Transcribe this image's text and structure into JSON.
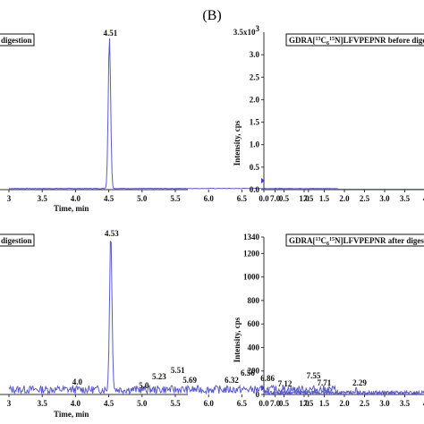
{
  "panel_letter": "(B)",
  "chart_data": [
    {
      "id": "top-left",
      "type": "line",
      "legend": "digestion",
      "xlabel": "Time, min",
      "ylabel": "",
      "x_ticks": [
        "3",
        "3.5",
        "4.0",
        "4.5",
        "5.0",
        "5.5",
        "6.0",
        "6.5",
        "7.0",
        "7.5"
      ],
      "xlim": [
        3.0,
        8.0
      ],
      "peak": {
        "x": 4.51,
        "label": "4.51"
      },
      "color": "#5a5ad0"
    },
    {
      "id": "bottom-left",
      "type": "line",
      "legend": "digestion",
      "xlabel": "Time, min",
      "ylabel": "",
      "x_ticks": [
        "3",
        "3.5",
        "4.0",
        "4.5",
        "5.0",
        "5.5",
        "6.0",
        "6.5",
        "7.0",
        "7.5"
      ],
      "xlim": [
        3.0,
        8.0
      ],
      "peak": {
        "x": 4.53,
        "label": "4.53"
      },
      "noise_labels": [
        {
          "x": 4.0,
          "label": "4.0"
        },
        {
          "x": 5.0,
          "label": "5.0"
        },
        {
          "x": 5.23,
          "label": "5.23"
        },
        {
          "x": 5.51,
          "label": "5.51"
        },
        {
          "x": 5.69,
          "label": "5.69"
        },
        {
          "x": 6.32,
          "label": "6.32"
        },
        {
          "x": 6.56,
          "label": "6.56"
        },
        {
          "x": 6.86,
          "label": "6.86"
        },
        {
          "x": 7.12,
          "label": "7.12"
        },
        {
          "x": 7.55,
          "label": "7.55"
        },
        {
          "x": 7.71,
          "label": "7.71"
        }
      ],
      "color": "#5a5ad0"
    },
    {
      "id": "top-right",
      "type": "line",
      "legend_prefix": "GDRA[",
      "legend_c": "13",
      "legend_c_letter": "C",
      "legend_c_sub": "6",
      "legend_n": "15",
      "legend_suffix": "N]LFVPEPNR before dige",
      "ylabel": "Intensity, cps",
      "ylim": [
        0,
        3500
      ],
      "y_ticks": [
        "0.0",
        "0.5",
        "1.0",
        "1.5",
        "2.0",
        "2.5",
        "3.0"
      ],
      "y_top_label": "3.5x10",
      "y_top_exp": "3",
      "x_ticks": [
        "0.0",
        "0.5",
        "1.0",
        "1.5",
        "2.0",
        "2.5",
        "3.0",
        "3.5",
        "4"
      ],
      "xlim": [
        0.0,
        4.1
      ],
      "color": "#5a5ad0"
    },
    {
      "id": "bottom-right",
      "type": "line",
      "legend_prefix": "GDRA[",
      "legend_c": "13",
      "legend_c_letter": "C",
      "legend_c_sub": "6",
      "legend_n": "15",
      "legend_suffix": "N]LFVPEPNR after digest",
      "ylabel": "Intensity, cps",
      "ylim": [
        0,
        1340
      ],
      "y_ticks": [
        "0",
        "200",
        "400",
        "600",
        "800",
        "1000",
        "1200",
        "1340"
      ],
      "x_ticks": [
        "0.0",
        "0.5",
        "1.0",
        "1.5",
        "2.0",
        "2.5",
        "3.0",
        "3.5",
        "4"
      ],
      "xlim": [
        0.0,
        4.1
      ],
      "peak_label": {
        "x": 2.29,
        "label": "2.29"
      },
      "color": "#5a5ad0"
    }
  ]
}
